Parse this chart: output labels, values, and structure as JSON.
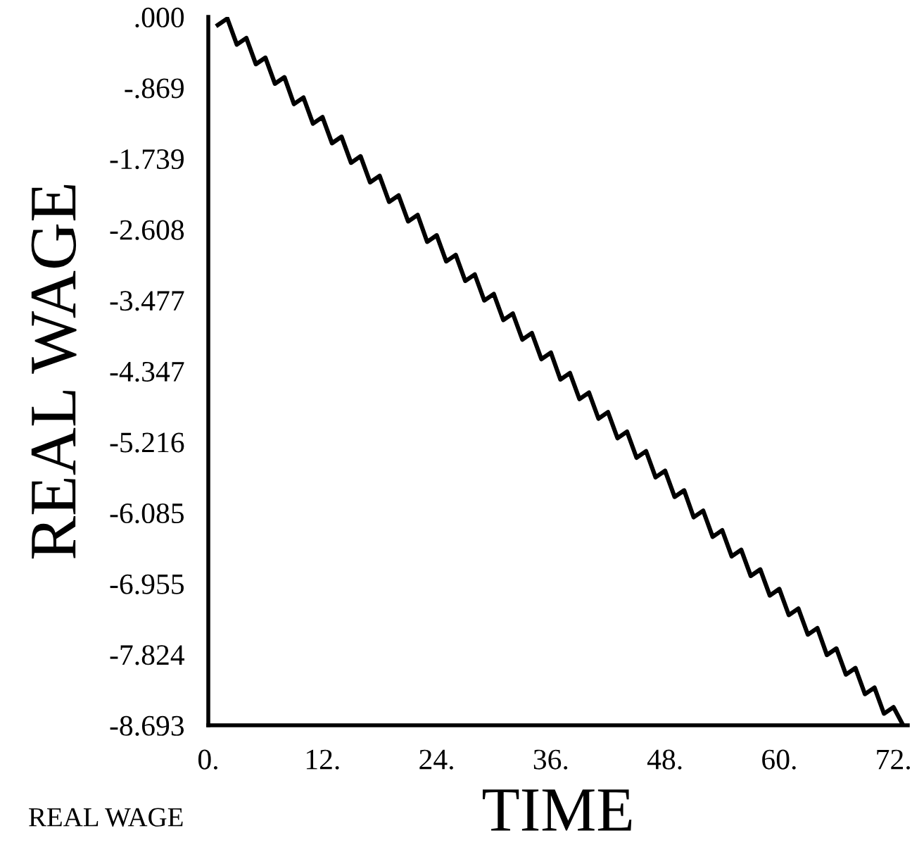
{
  "chart_data": {
    "type": "line",
    "xlabel": "TIME",
    "ylabel": "REAL WAGE",
    "annotations": [
      "REAL WAGE"
    ],
    "x": [
      1,
      2,
      3,
      4,
      5,
      6,
      7,
      8,
      9,
      10,
      11,
      12,
      13,
      14,
      15,
      16,
      17,
      18,
      19,
      20,
      21,
      22,
      23,
      24,
      25,
      26,
      27,
      28,
      29,
      30,
      31,
      32,
      33,
      34,
      35,
      36,
      37,
      38,
      39,
      40,
      41,
      42,
      43,
      44,
      45,
      46,
      47,
      48,
      49,
      50,
      51,
      52,
      53,
      54,
      55,
      56,
      57,
      58,
      59,
      60,
      61,
      62,
      63,
      64,
      65,
      66,
      67,
      68,
      69,
      70,
      71,
      72,
      73
    ],
    "series": [
      {
        "color": "#000000",
        "values": [
          -0.1,
          -0.02,
          -0.34,
          -0.26,
          -0.58,
          -0.5,
          -0.82,
          -0.74,
          -1.07,
          -0.99,
          -1.31,
          -1.23,
          -1.55,
          -1.47,
          -1.79,
          -1.71,
          -2.03,
          -1.95,
          -2.27,
          -2.19,
          -2.51,
          -2.43,
          -2.76,
          -2.68,
          -3.0,
          -2.92,
          -3.24,
          -3.16,
          -3.48,
          -3.4,
          -3.72,
          -3.64,
          -3.96,
          -3.88,
          -4.2,
          -4.12,
          -4.45,
          -4.37,
          -4.69,
          -4.61,
          -4.93,
          -4.85,
          -5.17,
          -5.09,
          -5.41,
          -5.33,
          -5.65,
          -5.57,
          -5.89,
          -5.81,
          -6.14,
          -6.06,
          -6.38,
          -6.3,
          -6.62,
          -6.54,
          -6.86,
          -6.78,
          -7.1,
          -7.02,
          -7.34,
          -7.26,
          -7.58,
          -7.5,
          -7.83,
          -7.75,
          -8.07,
          -7.99,
          -8.31,
          -8.23,
          -8.55,
          -8.47,
          -8.69
        ]
      }
    ],
    "xlim": [
      0,
      73.5
    ],
    "ylim": [
      -8.693,
      0
    ],
    "xticks": [
      {
        "value": 0,
        "label": "0."
      },
      {
        "value": 12,
        "label": "12."
      },
      {
        "value": 24,
        "label": "24."
      },
      {
        "value": 36,
        "label": "36."
      },
      {
        "value": 48,
        "label": "48."
      },
      {
        "value": 60,
        "label": "60."
      },
      {
        "value": 72,
        "label": "72."
      }
    ],
    "yticks": [
      {
        "value": 0,
        "label": ".000"
      },
      {
        "value": -0.869,
        "label": "-.869"
      },
      {
        "value": -1.739,
        "label": "-1.739"
      },
      {
        "value": -2.608,
        "label": "-2.608"
      },
      {
        "value": -3.477,
        "label": "-3.477"
      },
      {
        "value": -4.347,
        "label": "-4.347"
      },
      {
        "value": -5.216,
        "label": "-5.216"
      },
      {
        "value": -6.085,
        "label": "-6.085"
      },
      {
        "value": -6.955,
        "label": "-6.955"
      },
      {
        "value": -7.824,
        "label": "-7.824"
      },
      {
        "value": -8.693,
        "label": "-8.693"
      }
    ],
    "grid": false,
    "marker": "none",
    "line_style": "solid"
  }
}
